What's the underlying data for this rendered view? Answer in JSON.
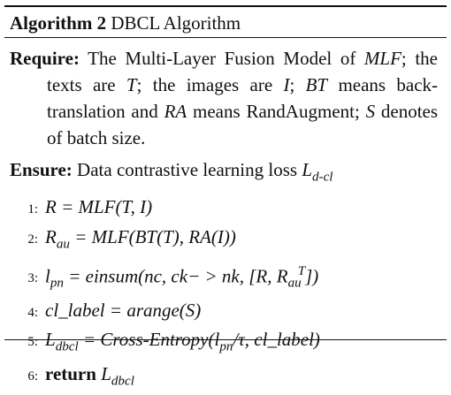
{
  "title": {
    "label": "Algorithm 2",
    "name": "DBCL Algorithm"
  },
  "require": {
    "label": "Require:",
    "t1": "The Multi-Layer Fusion Model of",
    "mlf": "MLF",
    "t2": "; the texts are",
    "T": "T",
    "t3": "; the images are",
    "I": "I",
    "t4": ";",
    "BT": "BT",
    "t5": "means back-translation and",
    "RA": "RA",
    "t6": "means RandAugment;",
    "S": "S",
    "t7": "denotes of batch size."
  },
  "ensure": {
    "label": "Ensure:",
    "text": "Data contrastive learning loss",
    "L": "L",
    "Lsub": "d-cl"
  },
  "steps": [
    {
      "n": "1:",
      "a": "R = MLF(T, I)"
    },
    {
      "n": "2:",
      "R": "R",
      "Rsub": "au",
      "a": " = MLF(BT(T), RA(I))"
    },
    {
      "n": "3:",
      "l": "l",
      "lsub": "pn",
      "a": " = einsum(nc, ck− > nk, [R, R",
      "supT": "T",
      "subau": "au",
      "b": "])"
    },
    {
      "n": "4:",
      "a": "cl_label = arange(S)"
    },
    {
      "n": "5:",
      "L": "L",
      "Lsub": "dbcl",
      "a": " = Cross-Entropy(l",
      "lsub": "pn",
      "b": "/τ, cl_label)"
    },
    {
      "n": "6:",
      "kw": "return",
      "L": "L",
      "Lsub": "dbcl"
    }
  ]
}
